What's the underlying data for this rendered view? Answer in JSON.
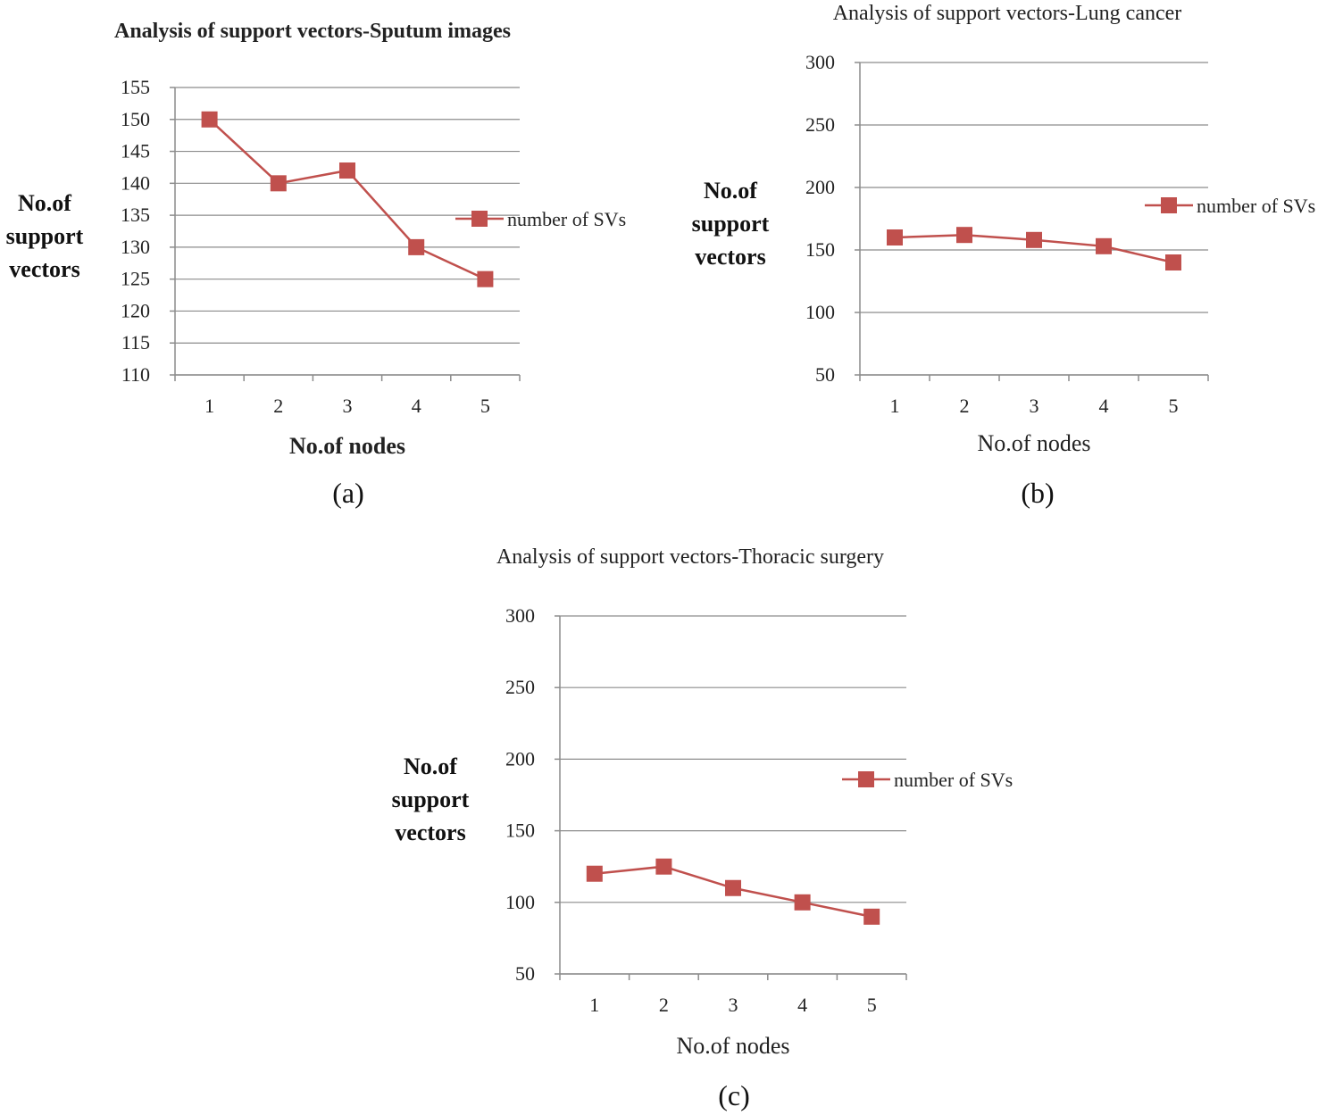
{
  "colors": {
    "series": "#C0504D",
    "grid": "#8c8c8c"
  },
  "chart_data": [
    {
      "id": "a",
      "type": "line",
      "title": "Analysis of support vectors-Sputum images",
      "ylabel": "No.of support vectors",
      "xlabel": "No.of nodes",
      "caption": "(a)",
      "categories": [
        "1",
        "2",
        "3",
        "4",
        "5"
      ],
      "series": [
        {
          "name": "number of SVs",
          "values": [
            150,
            140,
            142,
            130,
            125
          ]
        }
      ],
      "ylim": [
        110,
        155
      ],
      "yticks": [
        110,
        115,
        120,
        125,
        130,
        135,
        140,
        145,
        150,
        155
      ],
      "grid": true,
      "legend": "right"
    },
    {
      "id": "b",
      "type": "line",
      "title": "Analysis of support vectors-Lung cancer",
      "ylabel": "No.of support vectors",
      "xlabel": "No.of nodes",
      "caption": "(b)",
      "categories": [
        "1",
        "2",
        "3",
        "4",
        "5"
      ],
      "series": [
        {
          "name": "number of SVs",
          "values": [
            160,
            162,
            158,
            153,
            140
          ]
        }
      ],
      "ylim": [
        50,
        300
      ],
      "yticks": [
        50,
        100,
        150,
        200,
        250,
        300
      ],
      "grid": true,
      "legend": "right"
    },
    {
      "id": "c",
      "type": "line",
      "title": "Analysis of support vectors-Thoracic surgery",
      "ylabel": "No.of support vectors",
      "xlabel": "No.of nodes",
      "caption": "(c)",
      "categories": [
        "1",
        "2",
        "3",
        "4",
        "5"
      ],
      "series": [
        {
          "name": "number of SVs",
          "values": [
            120,
            125,
            110,
            100,
            90
          ]
        }
      ],
      "ylim": [
        50,
        300
      ],
      "yticks": [
        50,
        100,
        150,
        200,
        250,
        300
      ],
      "grid": true,
      "legend": "right"
    }
  ]
}
